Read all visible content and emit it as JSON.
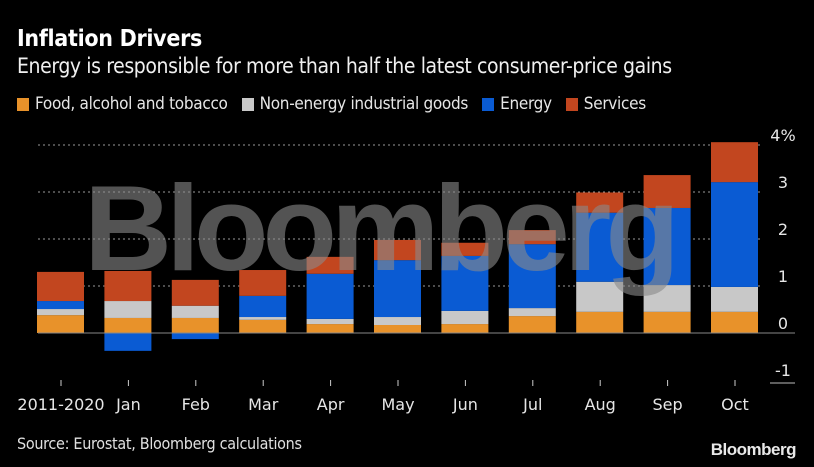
{
  "header": {
    "title": "Inflation Drivers",
    "subtitle": "Energy is responsible for more than half the latest consumer-price gains"
  },
  "footer": {
    "source": "Source: Eurostat, Bloomberg calculations",
    "brand": "Bloomberg"
  },
  "watermark": "Bloomberg",
  "chart_data": {
    "type": "bar",
    "stacked": true,
    "title": "Inflation Drivers",
    "subtitle": "Energy is responsible for more than half the latest consumer-price gains",
    "xlabel": "",
    "ylabel": "",
    "ylim": [
      -1,
      4
    ],
    "yticks": [
      -1,
      0,
      1,
      2,
      3,
      4
    ],
    "ytick_labels": [
      "-1",
      "0",
      "1",
      "2",
      "3",
      "4%"
    ],
    "grid": true,
    "legend_position": "top-left",
    "categories": [
      "2011-2020",
      "Jan",
      "Feb",
      "Mar",
      "Apr",
      "May",
      "Jun",
      "Jul",
      "Aug",
      "Sep",
      "Oct"
    ],
    "series": [
      {
        "name": "Food, alcohol and tobacco",
        "color": "#e8922a",
        "values": [
          0.38,
          0.32,
          0.32,
          0.28,
          0.19,
          0.17,
          0.19,
          0.36,
          0.45,
          0.45,
          0.45
        ]
      },
      {
        "name": "Non-energy industrial goods",
        "color": "#c8c8c8",
        "values": [
          0.13,
          0.36,
          0.26,
          0.06,
          0.11,
          0.17,
          0.28,
          0.17,
          0.64,
          0.57,
          0.53
        ]
      },
      {
        "name": "Energy",
        "color": "#0a5bd3",
        "values": [
          0.17,
          -0.38,
          -0.13,
          0.45,
          0.96,
          1.21,
          1.17,
          1.36,
          1.47,
          1.64,
          2.23
        ]
      },
      {
        "name": "Services",
        "color": "#c2461f",
        "values": [
          0.62,
          0.64,
          0.55,
          0.55,
          0.36,
          0.43,
          0.28,
          0.3,
          0.43,
          0.7,
          0.85
        ]
      }
    ]
  }
}
